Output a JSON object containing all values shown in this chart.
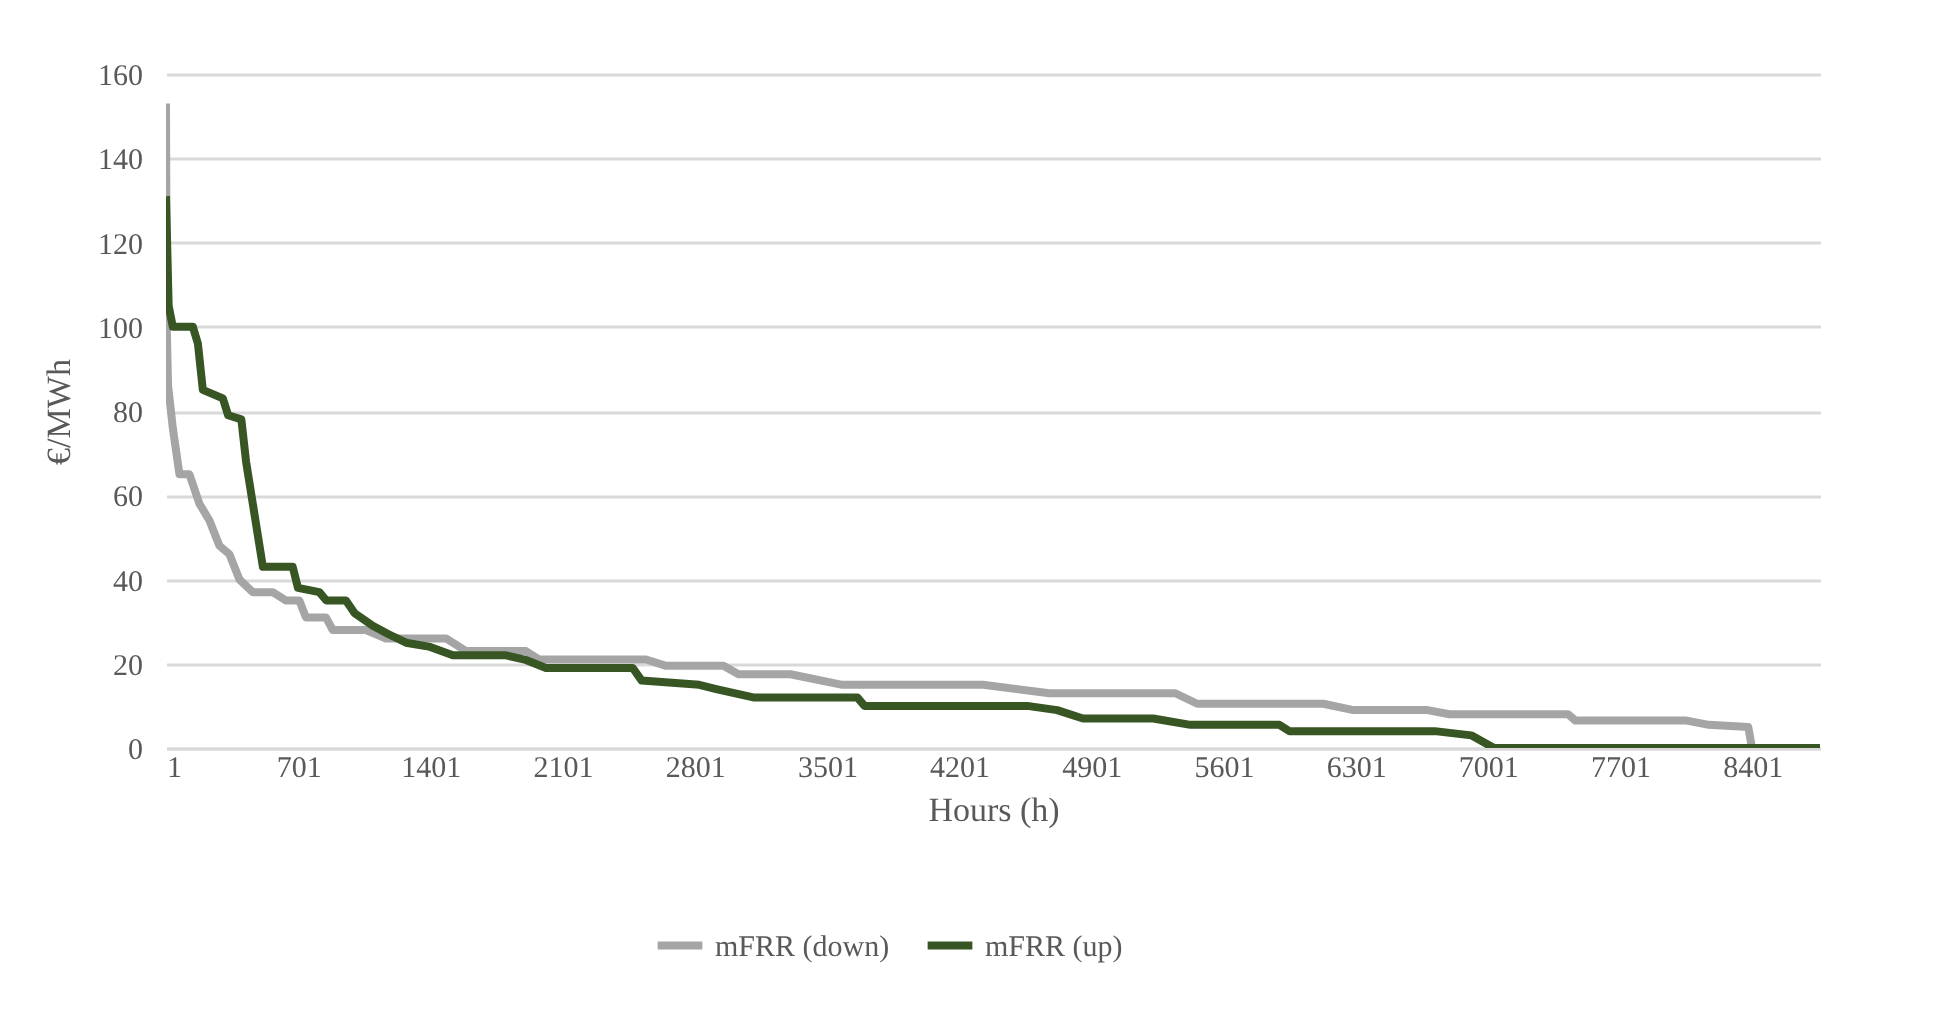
{
  "chart_data": {
    "type": "line",
    "xlabel": "Hours (h)",
    "ylabel": "€/MWh",
    "xlim": [
      1,
      8760
    ],
    "xticks": [
      1,
      701,
      1401,
      2101,
      2801,
      3501,
      4201,
      4901,
      5601,
      6301,
      7001,
      7701,
      8401
    ],
    "ylim": [
      0,
      160
    ],
    "yticks": [
      0,
      20,
      40,
      60,
      80,
      100,
      120,
      140,
      160
    ],
    "grid": "y",
    "legend": "bottom",
    "line_style": "solid",
    "series": [
      {
        "name": "mFRR (down)",
        "color": "#a5a5a5",
        "x": [
          1,
          5,
          12,
          37,
          72,
          125,
          178,
          231,
          284,
          337,
          390,
          460,
          566,
          637,
          707,
          742,
          848,
          884,
          1060,
          1166,
          1484,
          1590,
          1907,
          1978,
          2543,
          2649,
          2953,
          3033,
          3308,
          3583,
          4328,
          4679,
          5346,
          5462,
          6130,
          6289,
          6681,
          6798,
          7426,
          7465,
          8054,
          8171,
          8380,
          8400,
          8760
        ],
        "values": [
          153,
          100,
          86,
          76,
          65,
          65,
          58,
          54,
          48,
          46,
          40,
          37,
          37,
          35,
          35,
          31,
          31,
          28,
          28,
          26,
          26,
          23,
          23,
          21,
          21,
          19.5,
          19.5,
          17.5,
          17.5,
          15,
          15,
          13,
          13,
          10.5,
          10.5,
          9,
          9,
          8,
          8,
          6.5,
          6.5,
          5.5,
          5,
          0,
          0
        ]
      },
      {
        "name": "mFRR (up)",
        "color": "#375623",
        "x": [
          1,
          15,
          37,
          143,
          170,
          196,
          302,
          330,
          400,
          425,
          514,
          672,
          700,
          813,
          850,
          954,
          1000,
          1096,
          1180,
          1272,
          1400,
          1520,
          1801,
          1900,
          2013,
          2473,
          2520,
          2825,
          2915,
          3111,
          3662,
          3700,
          4562,
          4720,
          4857,
          5229,
          5426,
          5897,
          5950,
          6720,
          6913,
          7034,
          8760
        ],
        "values": [
          131,
          105,
          100,
          100,
          96,
          85,
          83,
          79,
          78,
          68,
          43,
          43,
          38,
          37,
          35,
          35,
          32,
          29,
          27,
          25,
          24,
          22,
          22,
          21,
          19,
          19,
          16,
          15,
          14,
          12,
          12,
          10,
          10,
          9,
          7,
          7,
          5.5,
          5.5,
          4,
          4,
          3,
          0,
          0
        ]
      }
    ]
  }
}
